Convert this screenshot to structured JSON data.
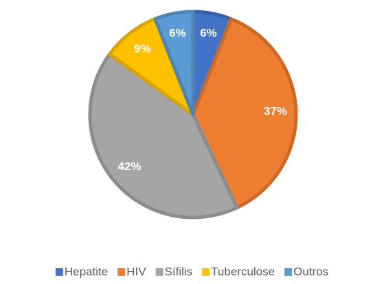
{
  "chart_data": {
    "type": "pie",
    "categories": [
      "Hepatite",
      "HIV",
      "Sífilis",
      "Tuberculose",
      "Outros"
    ],
    "values": [
      6,
      37,
      42,
      9,
      6
    ],
    "value_labels": [
      "6%",
      "37%",
      "42%",
      "9%",
      "6%"
    ],
    "colors": [
      "#4472c4",
      "#ed7d31",
      "#a5a5a5",
      "#ffc000",
      "#5b9bd5"
    ],
    "legend": "bottom"
  }
}
